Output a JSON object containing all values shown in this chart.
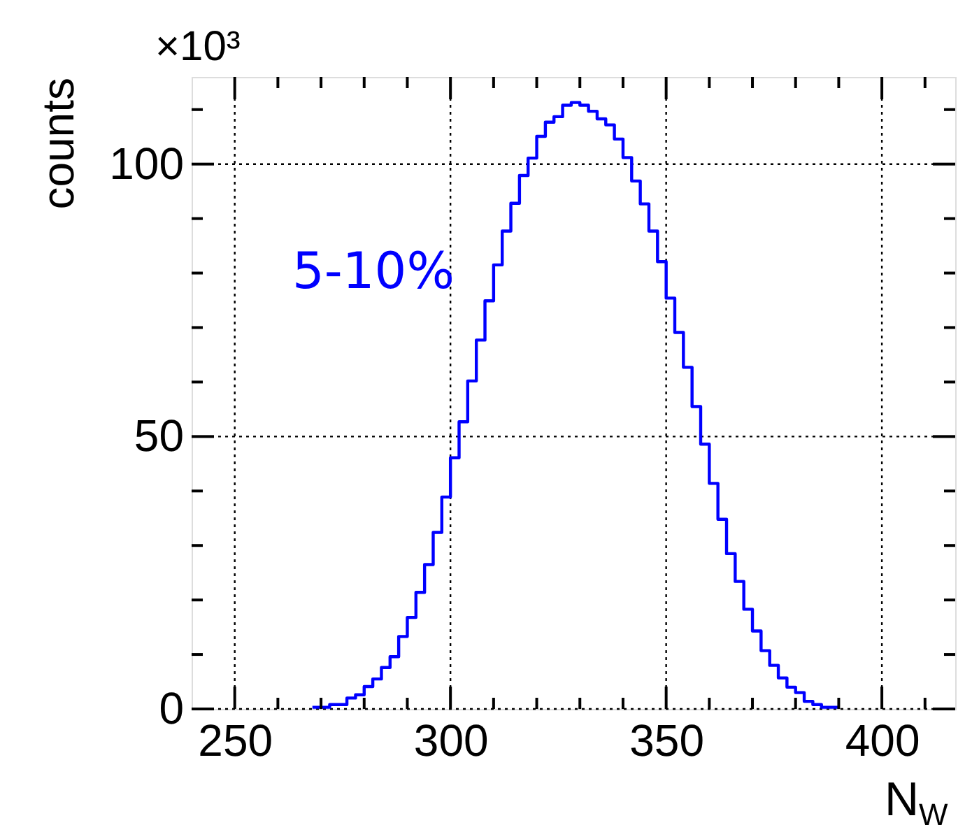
{
  "chart_data": {
    "type": "histogram",
    "ylabel": "counts",
    "xlabel": "N$_{W}$",
    "bins": [
      268,
      270,
      272,
      274,
      276,
      278,
      280,
      282,
      284,
      286,
      288,
      290,
      292,
      294,
      296,
      298,
      300,
      302,
      304,
      306,
      308,
      310,
      312,
      314,
      316,
      318,
      320,
      322,
      324,
      326,
      328,
      330,
      332,
      334,
      336,
      338,
      340,
      342,
      344,
      346,
      348,
      350,
      352,
      354,
      356,
      358,
      360,
      362,
      364,
      366,
      368,
      370,
      372,
      374,
      376,
      378,
      380,
      382,
      384,
      386,
      388,
      390
    ],
    "series": [
      {
        "name": "5-10%",
        "color": "#0000ff",
        "values": [
          0.3,
          0.3,
          0.8,
          0.8,
          2.0,
          2.6,
          4.1,
          5.5,
          7.6,
          9.6,
          13.3,
          16.8,
          21.4,
          26.5,
          32.4,
          38.9,
          46.1,
          52.7,
          60.2,
          67.7,
          74.9,
          81.5,
          87.7,
          92.8,
          97.9,
          101.1,
          105.1,
          107.7,
          108.7,
          110.8,
          111.3,
          110.8,
          109.7,
          108.3,
          107.2,
          104.6,
          101.2,
          96.9,
          92.7,
          87.7,
          82.1,
          75.4,
          69.1,
          62.7,
          55.5,
          48.6,
          41.4,
          34.8,
          28.5,
          23.4,
          18.3,
          14.3,
          10.7,
          8.0,
          5.7,
          4.0,
          3.0,
          1.4,
          0.8,
          0.3,
          0.3
        ]
      }
    ],
    "xlim": [
      240,
      417
    ],
    "ylim": [
      0,
      116
    ],
    "xticks": [
      250,
      {
        "value": 260,
        "label": null
      },
      {
        "value": 270,
        "label": null
      },
      {
        "value": 280,
        "label": null
      },
      {
        "value": 290,
        "label": null
      },
      300,
      {
        "value": 310,
        "label": null
      },
      {
        "value": 320,
        "label": null
      },
      {
        "value": 330,
        "label": null
      },
      {
        "value": 340,
        "label": null
      },
      350,
      {
        "value": 360,
        "label": null
      },
      {
        "value": 370,
        "label": null
      },
      {
        "value": 380,
        "label": null
      },
      {
        "value": 390,
        "label": null
      },
      400,
      {
        "value": 410,
        "label": null
      }
    ],
    "yticks": [
      0,
      {
        "value": 10,
        "label": null
      },
      {
        "value": 20,
        "label": null
      },
      {
        "value": 30,
        "label": null
      },
      {
        "value": 40,
        "label": null
      },
      50,
      {
        "value": 60,
        "label": null
      },
      {
        "value": 70,
        "label": null
      },
      {
        "value": 80,
        "label": null
      },
      {
        "value": 90,
        "label": null
      },
      100,
      {
        "value": 110,
        "label": null
      }
    ],
    "grid": true,
    "annotations": [
      "×10³"
    ]
  }
}
